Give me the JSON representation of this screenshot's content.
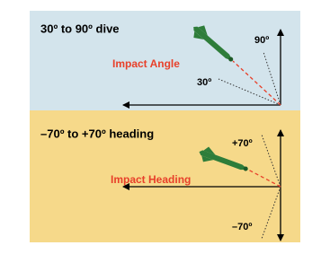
{
  "top_panel": {
    "title": "30º to 90º dive",
    "label": "Impact Angle",
    "angle_low": "30º",
    "angle_high": "90º"
  },
  "bottom_panel": {
    "title": "–70º to +70º heading",
    "label": "Impact Heading",
    "angle_high": "+70º",
    "angle_low": "–70º"
  }
}
